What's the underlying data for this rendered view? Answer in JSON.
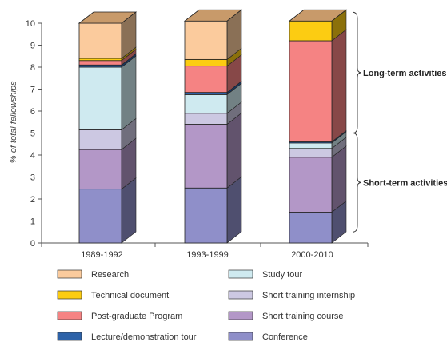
{
  "chart_data": {
    "type": "bar",
    "stacked": true,
    "style": "3d",
    "title": "",
    "xlabel": "",
    "ylabel": "% of total fellowships",
    "ylim": [
      0,
      10
    ],
    "yticks": [
      "0",
      "1",
      "2",
      "3",
      "4",
      "5",
      "6",
      "7",
      "8",
      "9",
      "10"
    ],
    "categories": [
      "1989-1992",
      "1993-1999",
      "2000-2010"
    ],
    "series": [
      {
        "name": "Conference",
        "color": "#8f8fc9",
        "values": [
          2.45,
          2.5,
          1.4
        ]
      },
      {
        "name": "Short training course",
        "color": "#b397c7",
        "values": [
          1.8,
          2.9,
          2.5
        ]
      },
      {
        "name": "Short training internship",
        "color": "#ccc8e2",
        "values": [
          0.9,
          0.5,
          0.4
        ]
      },
      {
        "name": "Study tour",
        "color": "#cfeaf0",
        "values": [
          2.85,
          0.85,
          0.25
        ]
      },
      {
        "name": "Lecture/demonstration tour",
        "color": "#2d62a8",
        "values": [
          0.1,
          0.1,
          0.05
        ]
      },
      {
        "name": "Post-graduate Program",
        "color": "#f58383",
        "values": [
          0.2,
          1.2,
          4.6
        ]
      },
      {
        "name": "Technical document",
        "color": "#fccc12",
        "values": [
          0.1,
          0.3,
          0.9
        ]
      },
      {
        "name": "Research",
        "color": "#fbcb9d",
        "values": [
          1.6,
          1.75,
          0
        ]
      }
    ],
    "annotations": [
      {
        "text": "Long-term activities",
        "from": 5.0,
        "to": 10.5
      },
      {
        "text": "Short-term activities",
        "from": 0.5,
        "to": 5.0
      }
    ],
    "legend": {
      "placement": "bottom",
      "columns": [
        [
          "Research",
          "Technical document",
          "Post-graduate Program",
          "Lecture/demonstration tour"
        ],
        [
          "Study tour",
          "Short training internship",
          "Short training course",
          "Conference"
        ]
      ]
    },
    "colors": {
      "top_face": "#c89a6a",
      "axis": "#555555"
    }
  }
}
